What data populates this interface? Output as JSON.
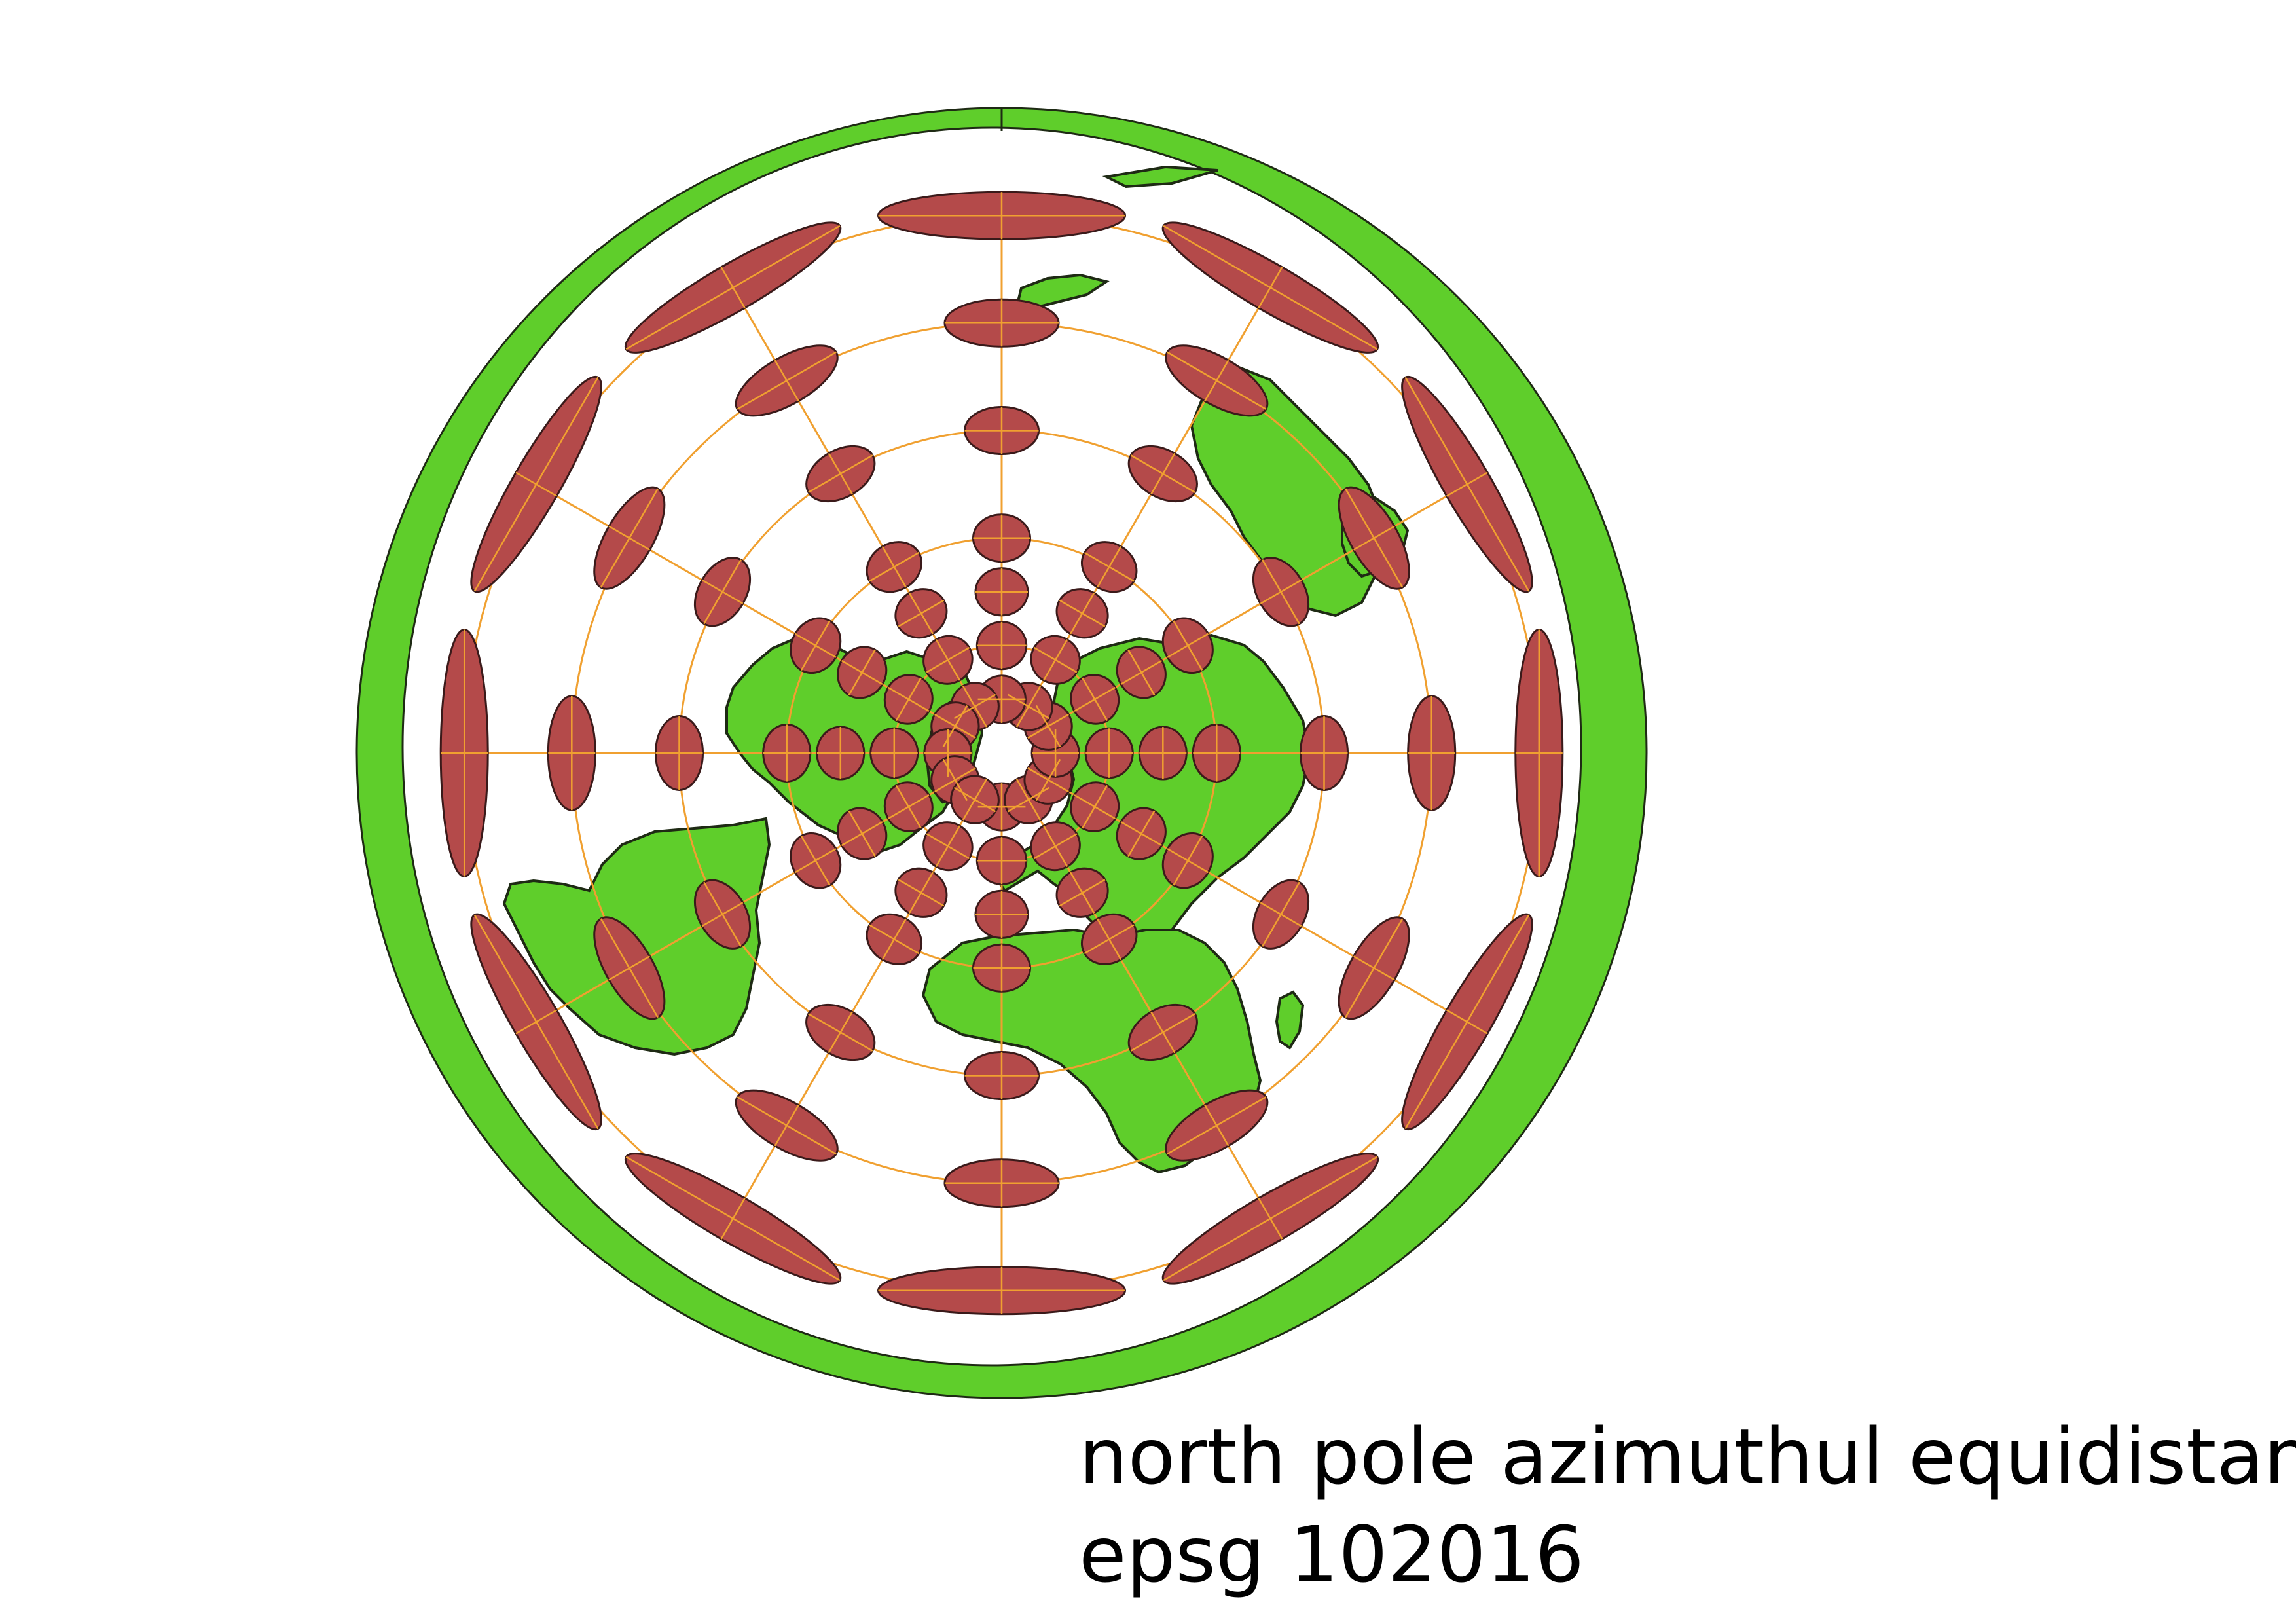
{
  "caption": {
    "line1": "north pole azimuthul equidistant",
    "line2": "epsg 102016"
  },
  "map": {
    "projection": "north pole azimuthal equidistant",
    "colors": {
      "land": "#5fce2b",
      "ocean": "#ffffff",
      "outline": "#1e2a14",
      "ellipse_fill": "#b44a4a",
      "ellipse_stroke": "#3a1a1a",
      "graticule": "#f0a030"
    },
    "graticule": {
      "latitudes_deg": [
        60,
        30,
        0,
        -30,
        -60
      ],
      "meridian_step_deg": 30
    },
    "tissot": {
      "rings": [
        {
          "lat": 75,
          "count": 12
        },
        {
          "lat": 60,
          "count": 12
        },
        {
          "lat": 45,
          "count": 12
        },
        {
          "lat": 30,
          "count": 12
        },
        {
          "lat": 0,
          "count": 12
        },
        {
          "lat": -30,
          "count": 12
        },
        {
          "lat": -60,
          "count": 12
        }
      ]
    }
  }
}
